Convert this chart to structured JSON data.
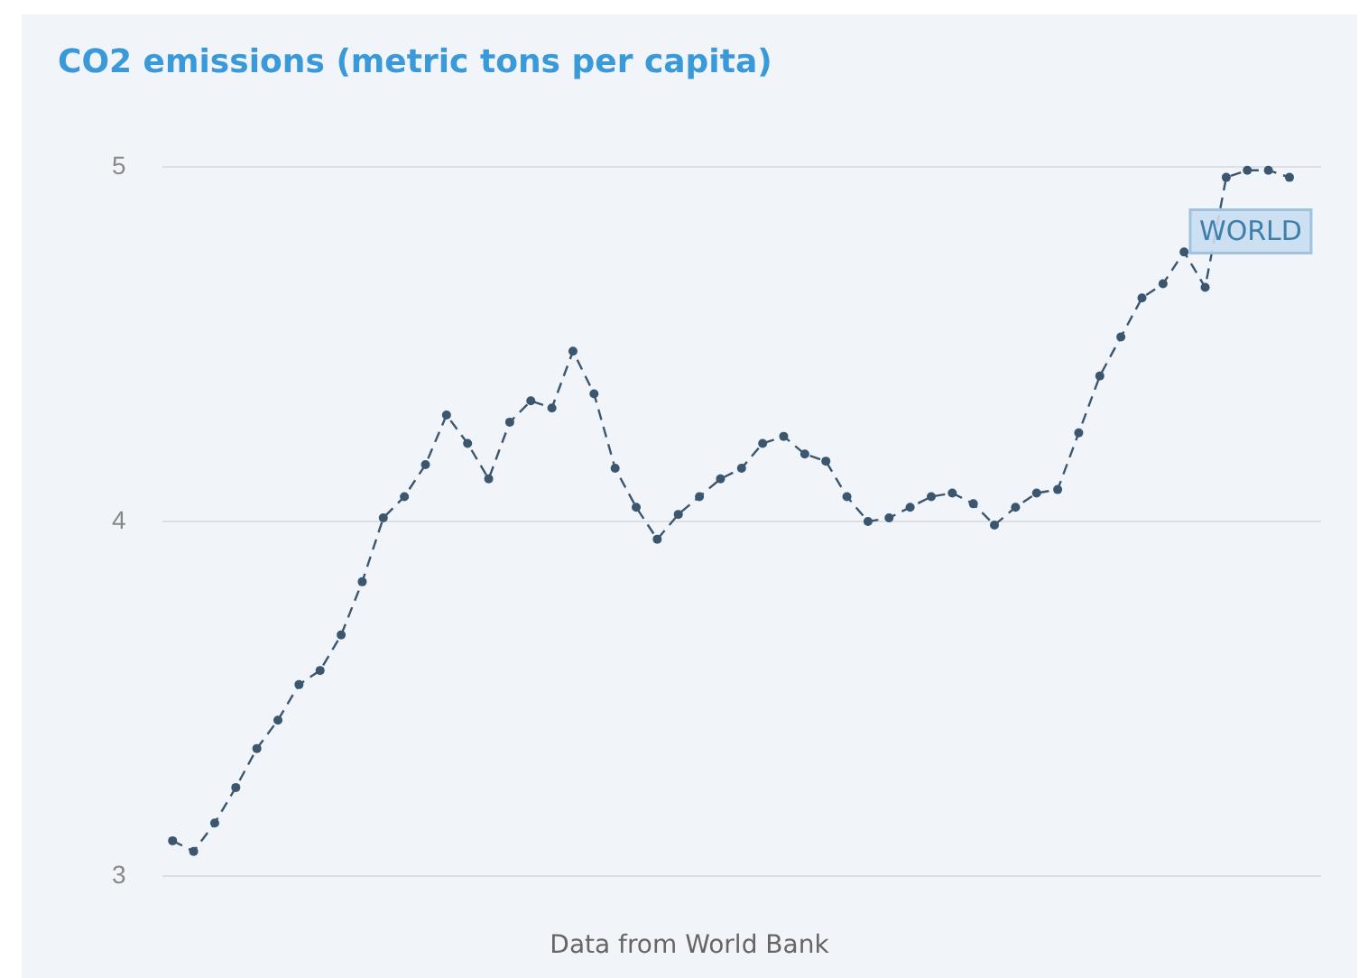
{
  "chart_data": {
    "type": "line",
    "title": "CO2 emissions (metric tons per capita)",
    "categories": [
      null,
      null,
      null,
      null,
      null,
      null,
      null,
      null,
      null,
      null,
      null,
      null,
      null,
      null,
      null,
      null,
      null,
      null,
      null,
      null,
      null,
      null,
      null,
      null,
      null,
      null,
      null,
      null,
      null,
      null,
      null,
      null,
      null,
      null,
      null,
      null,
      null,
      null,
      null,
      null,
      null,
      null,
      null,
      null,
      null,
      null,
      null,
      null,
      null,
      null,
      null,
      null,
      null,
      null,
      null
    ],
    "series": [
      {
        "name": "WORLD",
        "color": "#3b5770",
        "values": [
          3.1,
          3.07,
          3.15,
          3.25,
          3.36,
          3.44,
          3.54,
          3.58,
          3.68,
          3.83,
          4.01,
          4.07,
          4.16,
          4.3,
          4.22,
          4.12,
          4.28,
          4.34,
          4.32,
          4.48,
          4.36,
          4.15,
          4.04,
          3.95,
          4.02,
          4.07,
          4.12,
          4.15,
          4.22,
          4.24,
          4.19,
          4.17,
          4.07,
          4.0,
          4.01,
          4.04,
          4.07,
          4.08,
          4.05,
          3.99,
          4.04,
          4.08,
          4.09,
          4.25,
          4.41,
          4.52,
          4.63,
          4.67,
          4.76,
          4.66,
          4.97,
          4.99,
          4.99,
          4.97,
          null
        ]
      }
    ],
    "ylim": [
      3,
      5
    ],
    "yticks": [
      3,
      4,
      5
    ],
    "grid": "y",
    "tick_labels": "y",
    "legend": false,
    "marker": "circle",
    "line_style": "dashed",
    "annotations": [
      "Data from World Bank"
    ]
  }
}
